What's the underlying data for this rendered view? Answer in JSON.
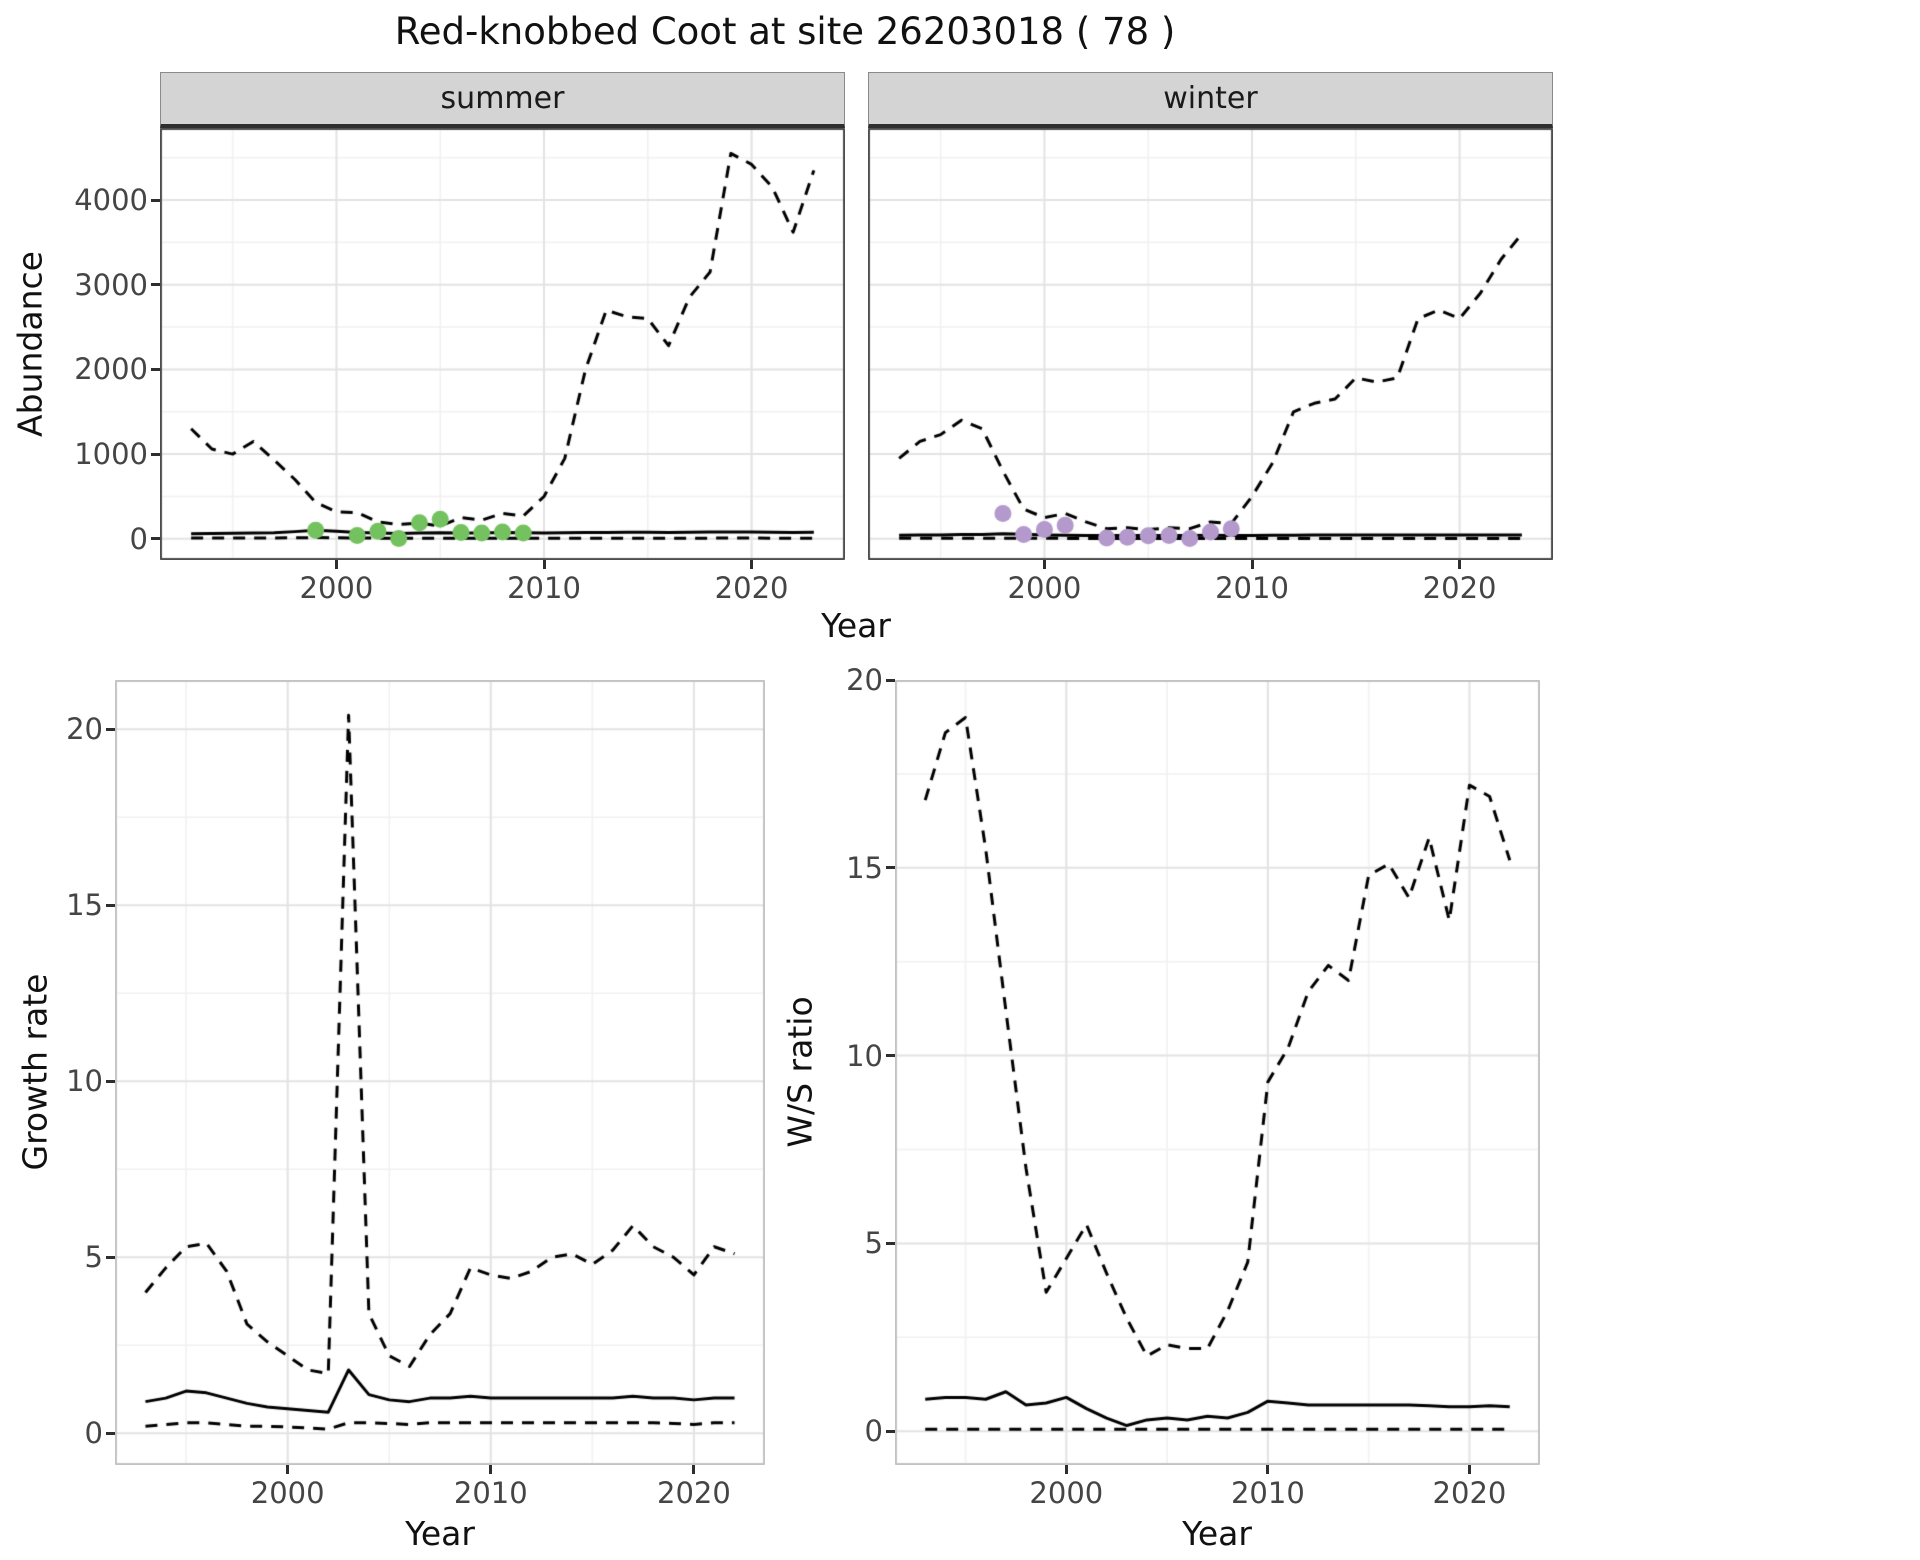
{
  "title": "Red-knobbed Coot at site 26203018 ( 78 )",
  "colors": {
    "line": "#000000",
    "summer_points": "#74c15f",
    "winter_points": "#b399cc",
    "strip_background": "#d4d4d4"
  },
  "chart_data": [
    {
      "id": "abundance-summer",
      "type": "line",
      "facet_label": "summer",
      "xlabel": "Year",
      "ylabel": "Abundance",
      "xlim": [
        1991.5,
        2024.5
      ],
      "ylim": [
        -250,
        4850
      ],
      "x_ticks": [
        2000,
        2010,
        2020
      ],
      "y_ticks": [
        0,
        1000,
        2000,
        3000,
        4000
      ],
      "x_minor": [
        1995,
        2005,
        2015
      ],
      "y_minor": [
        500,
        1500,
        2500,
        3500,
        4500
      ],
      "grid": true,
      "legend": "none",
      "years": [
        1993,
        1994,
        1995,
        1996,
        1997,
        1998,
        1999,
        2000,
        2001,
        2002,
        2003,
        2004,
        2005,
        2006,
        2007,
        2008,
        2009,
        2010,
        2011,
        2012,
        2013,
        2014,
        2015,
        2016,
        2017,
        2018,
        2019,
        2020,
        2021,
        2022,
        2023
      ],
      "series": [
        {
          "name": "upper_ci",
          "style": "dashed",
          "color": "#000000",
          "values": [
            1300,
            1060,
            1000,
            1150,
            930,
            700,
            430,
            320,
            310,
            200,
            170,
            185,
            150,
            250,
            220,
            300,
            270,
            500,
            950,
            2000,
            2700,
            2620,
            2600,
            2280,
            2850,
            3150,
            4550,
            4420,
            4150,
            3620,
            4350
          ]
        },
        {
          "name": "median",
          "style": "solid",
          "color": "#000000",
          "values": [
            60,
            62,
            65,
            68,
            72,
            85,
            100,
            88,
            75,
            68,
            62,
            68,
            72,
            70,
            70,
            74,
            72,
            70,
            72,
            74,
            76,
            78,
            78,
            76,
            78,
            80,
            82,
            80,
            78,
            76,
            78
          ]
        },
        {
          "name": "lower_ci",
          "style": "dashed",
          "color": "#000000",
          "values": [
            10,
            10,
            10,
            10,
            10,
            12,
            15,
            12,
            10,
            8,
            6,
            7,
            7,
            7,
            7,
            8,
            7,
            7,
            7,
            8,
            8,
            8,
            8,
            8,
            8,
            8,
            9,
            9,
            8,
            8,
            8
          ]
        }
      ],
      "points": {
        "name": "observed",
        "color": "#74c15f",
        "x": [
          1999,
          2001,
          2002,
          2003,
          2004,
          2005,
          2006,
          2007,
          2008,
          2009
        ],
        "y": [
          100,
          40,
          90,
          5,
          190,
          230,
          75,
          70,
          80,
          70
        ]
      }
    },
    {
      "id": "abundance-winter",
      "type": "line",
      "facet_label": "winter",
      "xlabel": "Year",
      "ylabel": "",
      "xlim": [
        1991.5,
        2024.5
      ],
      "ylim": [
        -250,
        4850
      ],
      "x_ticks": [
        2000,
        2010,
        2020
      ],
      "y_ticks": [
        0,
        1000,
        2000,
        3000,
        4000
      ],
      "x_minor": [
        1995,
        2005,
        2015
      ],
      "y_minor": [
        500,
        1500,
        2500,
        3500,
        4500
      ],
      "grid": true,
      "legend": "none",
      "years": [
        1993,
        1994,
        1995,
        1996,
        1997,
        1998,
        1999,
        2000,
        2001,
        2002,
        2003,
        2004,
        2005,
        2006,
        2007,
        2008,
        2009,
        2010,
        2011,
        2012,
        2013,
        2014,
        2015,
        2016,
        2017,
        2018,
        2019,
        2020,
        2021,
        2022,
        2023
      ],
      "series": [
        {
          "name": "upper_ci",
          "style": "dashed",
          "color": "#000000",
          "values": [
            950,
            1150,
            1230,
            1400,
            1300,
            800,
            350,
            250,
            300,
            200,
            120,
            130,
            110,
            130,
            120,
            200,
            180,
            500,
            900,
            1500,
            1600,
            1650,
            1900,
            1850,
            1900,
            2600,
            2700,
            2600,
            2900,
            3300,
            3600
          ]
        },
        {
          "name": "median",
          "style": "solid",
          "color": "#000000",
          "values": [
            42,
            44,
            46,
            50,
            52,
            60,
            55,
            46,
            42,
            40,
            38,
            38,
            38,
            40,
            40,
            42,
            40,
            40,
            42,
            42,
            44,
            44,
            45,
            45,
            45,
            46,
            46,
            45,
            45,
            45,
            46
          ]
        },
        {
          "name": "lower_ci",
          "style": "dashed",
          "color": "#000000",
          "values": [
            6,
            6,
            6,
            7,
            7,
            8,
            7,
            6,
            5,
            4,
            3,
            3,
            3,
            3,
            3,
            4,
            4,
            4,
            4,
            4,
            4,
            4,
            5,
            5,
            5,
            5,
            5,
            5,
            5,
            5,
            5
          ]
        }
      ],
      "points": {
        "name": "observed",
        "color": "#b399cc",
        "x": [
          1998,
          1999,
          2000,
          2001,
          2003,
          2004,
          2005,
          2006,
          2007,
          2008,
          2009
        ],
        "y": [
          300,
          50,
          110,
          160,
          10,
          20,
          35,
          40,
          5,
          80,
          120
        ]
      }
    },
    {
      "id": "growth-rate",
      "type": "line",
      "facet_label": "",
      "xlabel": "Year",
      "ylabel": "Growth rate",
      "xlim": [
        1991.5,
        2023.5
      ],
      "ylim": [
        -0.9,
        21.4
      ],
      "x_ticks": [
        2000,
        2010,
        2020
      ],
      "y_ticks": [
        0,
        5,
        10,
        15,
        20
      ],
      "x_minor": [
        1995,
        2005,
        2015
      ],
      "y_minor": [
        2.5,
        7.5,
        12.5,
        17.5
      ],
      "grid": true,
      "legend": "none",
      "years": [
        1993,
        1994,
        1995,
        1996,
        1997,
        1998,
        1999,
        2000,
        2001,
        2002,
        2003,
        2004,
        2005,
        2006,
        2007,
        2008,
        2009,
        2010,
        2011,
        2012,
        2013,
        2014,
        2015,
        2016,
        2017,
        2018,
        2019,
        2020,
        2021,
        2022
      ],
      "series": [
        {
          "name": "upper_ci",
          "style": "dashed",
          "color": "#000000",
          "values": [
            4.0,
            4.7,
            5.3,
            5.4,
            4.6,
            3.1,
            2.6,
            2.2,
            1.8,
            1.7,
            20.4,
            3.4,
            2.2,
            1.9,
            2.8,
            3.4,
            4.7,
            4.5,
            4.4,
            4.6,
            5.0,
            5.1,
            4.8,
            5.2,
            5.9,
            5.3,
            5.0,
            4.5,
            5.3,
            5.1
          ]
        },
        {
          "name": "median",
          "style": "solid",
          "color": "#000000",
          "values": [
            0.9,
            1.0,
            1.2,
            1.15,
            1.0,
            0.85,
            0.75,
            0.7,
            0.65,
            0.6,
            1.8,
            1.1,
            0.95,
            0.9,
            1.0,
            1.0,
            1.05,
            1.0,
            1.0,
            1.0,
            1.0,
            1.0,
            1.0,
            1.0,
            1.05,
            1.0,
            1.0,
            0.95,
            1.0,
            1.0
          ]
        },
        {
          "name": "lower_ci",
          "style": "dashed",
          "color": "#000000",
          "values": [
            0.2,
            0.25,
            0.3,
            0.3,
            0.25,
            0.2,
            0.2,
            0.18,
            0.15,
            0.12,
            0.3,
            0.3,
            0.28,
            0.25,
            0.3,
            0.3,
            0.3,
            0.3,
            0.3,
            0.3,
            0.3,
            0.3,
            0.3,
            0.3,
            0.3,
            0.3,
            0.28,
            0.25,
            0.3,
            0.3
          ]
        }
      ]
    },
    {
      "id": "ws-ratio",
      "type": "line",
      "facet_label": "",
      "xlabel": "Year",
      "ylabel": "W/S ratio",
      "xlim": [
        1991.5,
        2023.5
      ],
      "ylim": [
        -0.9,
        20.0
      ],
      "x_ticks": [
        2000,
        2010,
        2020
      ],
      "y_ticks": [
        0,
        5,
        10,
        15,
        20
      ],
      "x_minor": [
        1995,
        2005,
        2015
      ],
      "y_minor": [
        2.5,
        7.5,
        12.5,
        17.5
      ],
      "grid": true,
      "legend": "none",
      "years": [
        1993,
        1994,
        1995,
        1996,
        1997,
        1998,
        1999,
        2000,
        2001,
        2002,
        2003,
        2004,
        2005,
        2006,
        2007,
        2008,
        2009,
        2010,
        2011,
        2012,
        2013,
        2014,
        2015,
        2016,
        2017,
        2018,
        2019,
        2020,
        2021,
        2022
      ],
      "series": [
        {
          "name": "upper_ci",
          "style": "dashed",
          "color": "#000000",
          "values": [
            16.8,
            18.6,
            19.0,
            15.5,
            11.2,
            7.0,
            3.7,
            4.6,
            5.5,
            4.2,
            3.0,
            2.0,
            2.3,
            2.2,
            2.2,
            3.2,
            4.5,
            9.3,
            10.2,
            11.7,
            12.4,
            12.0,
            14.8,
            15.1,
            14.2,
            15.8,
            13.6,
            17.2,
            16.9,
            15.2
          ]
        },
        {
          "name": "median",
          "style": "solid",
          "color": "#000000",
          "values": [
            0.85,
            0.9,
            0.9,
            0.85,
            1.05,
            0.7,
            0.75,
            0.9,
            0.6,
            0.35,
            0.15,
            0.3,
            0.35,
            0.3,
            0.4,
            0.35,
            0.5,
            0.8,
            0.75,
            0.7,
            0.7,
            0.7,
            0.7,
            0.7,
            0.7,
            0.68,
            0.65,
            0.65,
            0.68,
            0.65
          ]
        },
        {
          "name": "lower_ci",
          "style": "dashed",
          "color": "#000000",
          "values": [
            0.05,
            0.05,
            0.05,
            0.05,
            0.05,
            0.05,
            0.05,
            0.05,
            0.05,
            0.05,
            0.05,
            0.05,
            0.05,
            0.05,
            0.05,
            0.05,
            0.05,
            0.05,
            0.05,
            0.05,
            0.05,
            0.05,
            0.05,
            0.05,
            0.05,
            0.05,
            0.05,
            0.05,
            0.05,
            0.05
          ]
        }
      ]
    }
  ]
}
